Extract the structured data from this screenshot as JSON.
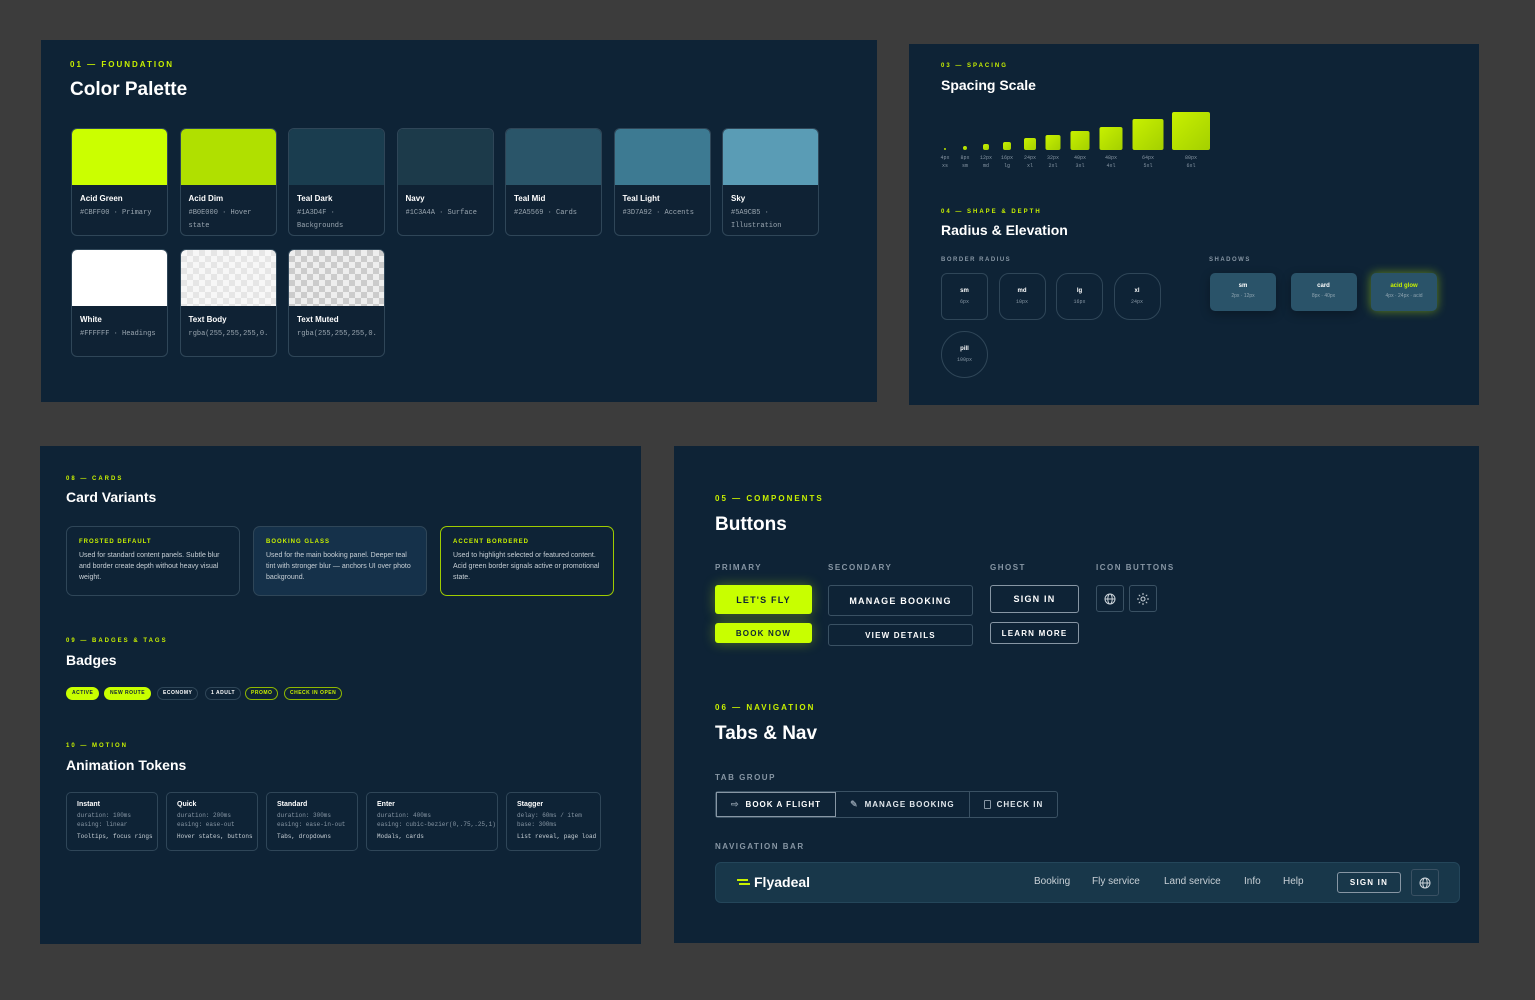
{
  "foundation": {
    "eyebrow": "01 — FOUNDATION",
    "title": "Color Palette",
    "swatches": [
      {
        "name": "Acid Green",
        "desc": "#CBFF00 · Primary",
        "color": "#CBFF00"
      },
      {
        "name": "Acid Dim",
        "desc": "#B0E000 · Hover state",
        "color": "#B0E000"
      },
      {
        "name": "Teal Dark",
        "desc": "#1A3D4F · Backgrounds",
        "color": "#1A3D4F"
      },
      {
        "name": "Navy",
        "desc": "#1C3A4A · Surface",
        "color": "#1C3A4A"
      },
      {
        "name": "Teal Mid",
        "desc": "#2A5569 · Cards",
        "color": "#2A5569"
      },
      {
        "name": "Teal Light",
        "desc": "#3D7A92 · Accents",
        "color": "#3D7A92"
      },
      {
        "name": "Sky",
        "desc": "#5A9CB5 · Illustration",
        "color": "#5A9CB5"
      },
      {
        "name": "White",
        "desc": "#FFFFFF · Headings",
        "color": "#FFFFFF"
      },
      {
        "name": "Text Body",
        "desc": "rgba(255,255,255,0.",
        "color": "checker-light"
      },
      {
        "name": "Text Muted",
        "desc": "rgba(255,255,255,0.",
        "color": "checker"
      }
    ]
  },
  "spacing": {
    "eyebrow": "03 — SPACING",
    "title": "Spacing Scale",
    "steps": [
      {
        "value": "4px",
        "token": "xs"
      },
      {
        "value": "8px",
        "token": "sm"
      },
      {
        "value": "12px",
        "token": "md"
      },
      {
        "value": "16px",
        "token": "lg"
      },
      {
        "value": "24px",
        "token": "xl"
      },
      {
        "value": "32px",
        "token": "2xl"
      },
      {
        "value": "40px",
        "token": "3xl"
      },
      {
        "value": "48px",
        "token": "4xl"
      },
      {
        "value": "64px",
        "token": "5xl"
      },
      {
        "value": "80px",
        "token": "6xl"
      }
    ]
  },
  "shape": {
    "eyebrow": "04 — SHAPE & DEPTH",
    "title": "Radius & Elevation",
    "radius_label": "BORDER RADIUS",
    "shadows_label": "SHADOWS",
    "radii": [
      {
        "name": "sm",
        "value": "6px"
      },
      {
        "name": "md",
        "value": "10px"
      },
      {
        "name": "lg",
        "value": "16px"
      },
      {
        "name": "xl",
        "value": "24px"
      },
      {
        "name": "pill",
        "value": "100px"
      }
    ],
    "shadows": [
      {
        "name": "sm",
        "value": "2px · 12px"
      },
      {
        "name": "card",
        "value": "8px · 40px"
      },
      {
        "name": "acid glow",
        "value": "4px · 24px · acid"
      }
    ]
  },
  "cards": {
    "eyebrow": "08 — CARDS",
    "title": "Card Variants",
    "items": [
      {
        "title": "FROSTED DEFAULT",
        "text": "Used for standard content panels. Subtle blur and border create depth without heavy visual weight."
      },
      {
        "title": "BOOKING GLASS",
        "text": "Used for the main booking panel. Deeper teal tint with stronger blur — anchors UI over photo background."
      },
      {
        "title": "ACCENT BORDERED",
        "text": "Used to highlight selected or featured content. Acid green border signals active or promotional state."
      }
    ]
  },
  "badges": {
    "eyebrow": "09 — BADGES & TAGS",
    "title": "Badges",
    "items": [
      "ACTIVE",
      "NEW ROUTE",
      "ECONOMY",
      "1 ADULT",
      "PROMO",
      "CHECK IN OPEN"
    ]
  },
  "motion": {
    "eyebrow": "10 — MOTION",
    "title": "Animation Tokens",
    "items": [
      {
        "name": "Instant",
        "l1": "duration: 100ms",
        "l2": "easing: linear",
        "use": "Tooltips, focus rings"
      },
      {
        "name": "Quick",
        "l1": "duration: 200ms",
        "l2": "easing: ease-out",
        "use": "Hover states, buttons"
      },
      {
        "name": "Standard",
        "l1": "duration: 300ms",
        "l2": "easing: ease-in-out",
        "use": "Tabs, dropdowns"
      },
      {
        "name": "Enter",
        "l1": "duration: 400ms",
        "l2": "easing: cubic-bezier(0,.75,.25,1)",
        "use": "Modals, cards"
      },
      {
        "name": "Stagger",
        "l1": "delay: 60ms / item",
        "l2": "base: 300ms",
        "use": "List reveal, page load"
      }
    ]
  },
  "buttons": {
    "eyebrow": "05 — COMPONENTS",
    "title": "Buttons",
    "primary_label": "PRIMARY",
    "secondary_label": "SECONDARY",
    "ghost_label": "GHOST",
    "icon_label": "ICON BUTTONS",
    "primary": [
      "LET'S FLY",
      "BOOK NOW"
    ],
    "secondary": [
      "MANAGE BOOKING",
      "VIEW DETAILS"
    ],
    "ghost": [
      "SIGN IN",
      "LEARN MORE"
    ],
    "icons": [
      "globe-icon",
      "sun-icon"
    ]
  },
  "navigation": {
    "eyebrow": "06 — NAVIGATION",
    "title": "Tabs & Nav",
    "tab_group_label": "TAB GROUP",
    "nav_bar_label": "NAVIGATION BAR",
    "tabs": [
      "BOOK A FLIGHT",
      "MANAGE BOOKING",
      "CHECK IN"
    ],
    "brand": "Flyadeal",
    "links": [
      "Booking",
      "Fly service",
      "Land service",
      "Info",
      "Help"
    ],
    "sign_in": "SIGN IN"
  }
}
